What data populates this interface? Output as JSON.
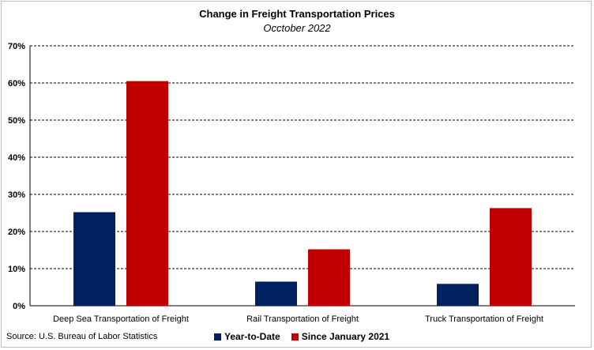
{
  "chart_data": {
    "type": "bar",
    "title": "Change in Freight Transportation Prices",
    "subtitle": "Occtober 2022",
    "categories": [
      "Deep Sea Transportation of Freight",
      "Rail Transportation of Freight",
      "Truck Transportation of Freight"
    ],
    "series": [
      {
        "name": "Year-to-Date",
        "color": "#002060",
        "values": [
          25.2,
          6.5,
          5.9
        ]
      },
      {
        "name": "Since January 2021",
        "color": "#c00000",
        "values": [
          60.5,
          15.2,
          26.3
        ]
      }
    ],
    "ylim": [
      0,
      70
    ],
    "yticks": [
      0,
      10,
      20,
      30,
      40,
      50,
      60,
      70
    ],
    "ytick_labels": [
      "0%",
      "10%",
      "20%",
      "30%",
      "40%",
      "50%",
      "60%",
      "70%"
    ],
    "grid": true,
    "legend_position": "bottom"
  },
  "source": "Source: U.S. Bureau of Labor Statistics"
}
